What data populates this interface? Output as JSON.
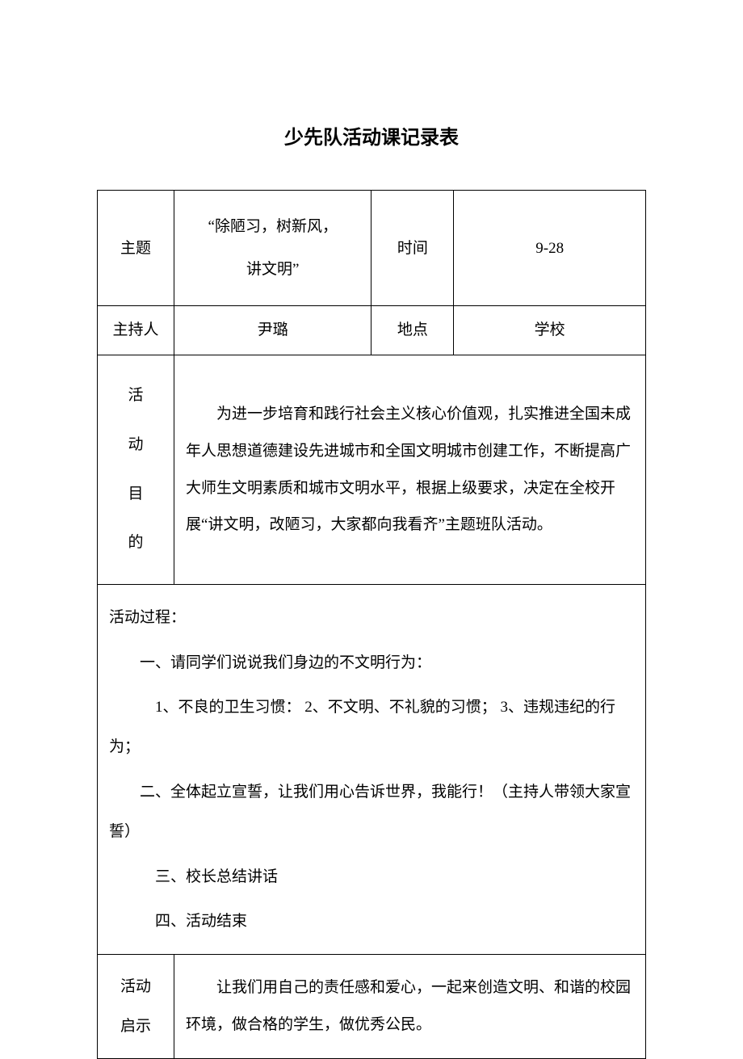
{
  "document": {
    "title": "少先队活动课记录表",
    "title_fontsize": 24,
    "title_fontweight": "bold",
    "body_fontsize": 19,
    "font_family": "SimSun",
    "text_color": "#000000",
    "background_color": "#ffffff",
    "border_color": "#000000",
    "line_height": 2.3,
    "table": {
      "columns": [
        {
          "width_pct": 14,
          "align": "center"
        },
        {
          "width_pct": 36,
          "align": "center"
        },
        {
          "width_pct": 15,
          "align": "center"
        },
        {
          "width_pct": 35,
          "align": "center"
        }
      ],
      "row1": {
        "label_theme": "主题",
        "theme_line1": "“除陋习，树新风，",
        "theme_line2": "讲文明”",
        "label_time": "时间",
        "time_value": "9-28"
      },
      "row2": {
        "label_host": "主持人",
        "host_value": "尹璐",
        "label_location": "地点",
        "location_value": "学校"
      },
      "row3": {
        "label_c1": "活",
        "label_c2": "动",
        "label_c3": "目",
        "label_c4": "的",
        "content": "为进一步培育和践行社会主义核心价值观，扎实推进全国未成年人思想道德建设先进城市和全国文明城市创建工作，不断提高广大师生文明素质和城市文明水平，根据上级要求，决定在全校开展“讲文明，改陋习，大家都向我看齐”主题班队活动。"
      },
      "row4": {
        "heading": "活动过程：",
        "line1": "一、请同学们说说我们身边的不文明行为：",
        "line2": "1、不良的卫生习惯：   2、不文明、不礼貌的习惯；   3、违规违纪的行为；",
        "line3": "二、全体起立宣誓，让我们用心告诉世界，我能行！（主持人带领大家宣誓）",
        "line4": "三、校长总结讲话",
        "line5": "四、活动结束"
      },
      "row5": {
        "label_l1": "活动",
        "label_l2": "启示",
        "content": "让我们用自己的责任感和爱心，一起来创造文明、和谐的校园环境，做合格的学生，做优秀公民。"
      }
    }
  }
}
